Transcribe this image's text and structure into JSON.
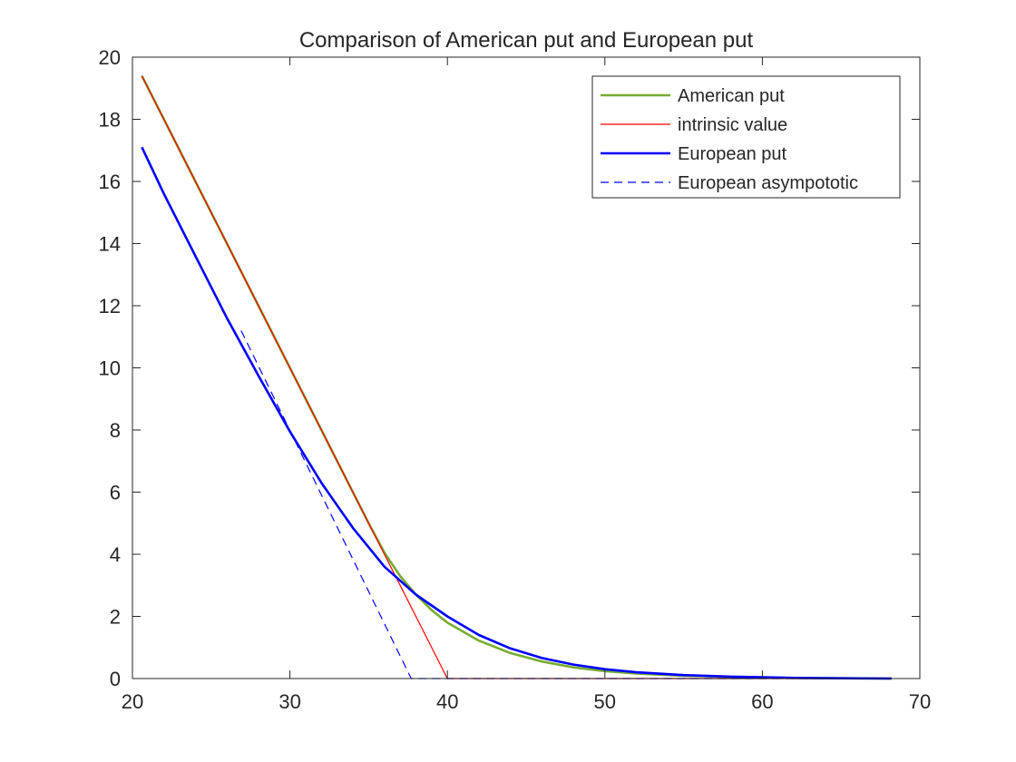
{
  "chart_data": {
    "type": "line",
    "title": "Comparison of American put and European put",
    "xlabel": "",
    "ylabel": "",
    "xlim": [
      20,
      70
    ],
    "ylim": [
      0,
      20
    ],
    "xticks": [
      20,
      30,
      40,
      50,
      60,
      70
    ],
    "yticks": [
      0,
      2,
      4,
      6,
      8,
      10,
      12,
      14,
      16,
      18,
      20
    ],
    "grid": false,
    "legend_position": "top-right",
    "series": [
      {
        "name": "American put",
        "color": "#77ac30",
        "style": "solid",
        "x": [
          20.6,
          22,
          24,
          26,
          28,
          30,
          32,
          34,
          35,
          36,
          37,
          38,
          39,
          40,
          42,
          44,
          46,
          48,
          50,
          52,
          55,
          58,
          60,
          62,
          65,
          68.2
        ],
        "y": [
          19.4,
          18.0,
          16.0,
          14.0,
          12.0,
          10.0,
          8.0,
          6.0,
          5.0,
          4.05,
          3.3,
          2.7,
          2.2,
          1.8,
          1.22,
          0.82,
          0.55,
          0.36,
          0.24,
          0.16,
          0.09,
          0.05,
          0.03,
          0.02,
          0.01,
          0.0
        ]
      },
      {
        "name": "intrinsic value",
        "color": "#ff0000",
        "style": "solid",
        "x": [
          20.6,
          40,
          68.2
        ],
        "y": [
          19.4,
          0,
          0
        ]
      },
      {
        "name": "European put",
        "color": "#0000ff",
        "style": "solid",
        "x": [
          20.6,
          22,
          24,
          26,
          28,
          30,
          32,
          34,
          36,
          38,
          40,
          42,
          44,
          46,
          48,
          50,
          52,
          55,
          58,
          60,
          62,
          65,
          68.2
        ],
        "y": [
          17.1,
          15.6,
          13.6,
          11.6,
          9.75,
          7.95,
          6.3,
          4.85,
          3.6,
          2.7,
          2.0,
          1.4,
          0.97,
          0.66,
          0.45,
          0.3,
          0.2,
          0.11,
          0.06,
          0.04,
          0.02,
          0.01,
          0.0
        ]
      },
      {
        "name": "European asympototic",
        "color": "#0000ff",
        "style": "dashed",
        "x": [
          26.9,
          37.7,
          68.2
        ],
        "y": [
          11.2,
          0,
          0
        ]
      }
    ]
  }
}
